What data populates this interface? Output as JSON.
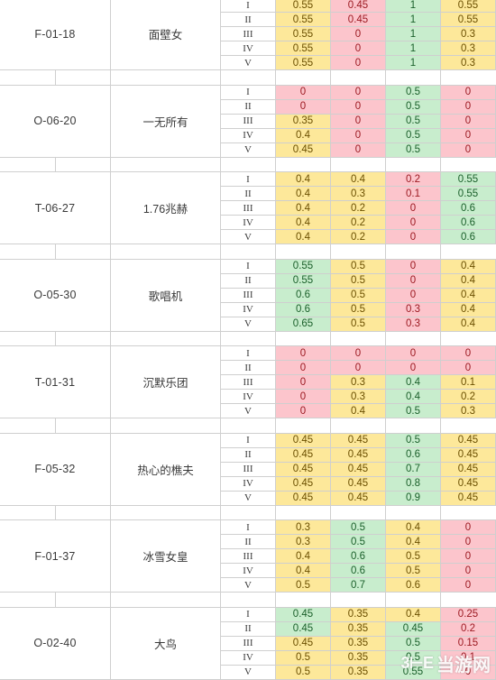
{
  "palette": {
    "yellow": "#fde89a",
    "red": "#fcc5cc",
    "green": "#c8edcd",
    "white": "#ffffff",
    "grid": "#cfcfcf",
    "text": "#3a3a3a",
    "text_red": "#9c1a22",
    "text_green": "#1a5f2a",
    "text_yellow": "#6b4f00"
  },
  "watermark": {
    "logo": "3⊢E",
    "text": "当游网"
  },
  "roman": [
    "I",
    "II",
    "III",
    "IV",
    "V"
  ],
  "groups": [
    {
      "code": "F-01-18",
      "name": "面壁女",
      "rows": [
        {
          "values": [
            "0.55",
            "0.45",
            "1",
            "0.55"
          ],
          "colors": [
            "y",
            "r",
            "g",
            "y"
          ]
        },
        {
          "values": [
            "0.55",
            "0.45",
            "1",
            "0.55"
          ],
          "colors": [
            "y",
            "r",
            "g",
            "y"
          ]
        },
        {
          "values": [
            "0.55",
            "0",
            "1",
            "0.3"
          ],
          "colors": [
            "y",
            "r",
            "g",
            "y"
          ]
        },
        {
          "values": [
            "0.55",
            "0",
            "1",
            "0.3"
          ],
          "colors": [
            "y",
            "r",
            "g",
            "y"
          ]
        },
        {
          "values": [
            "0.55",
            "0",
            "1",
            "0.3"
          ],
          "colors": [
            "y",
            "r",
            "g",
            "y"
          ]
        }
      ]
    },
    {
      "code": "O-06-20",
      "name": "一无所有",
      "rows": [
        {
          "values": [
            "0",
            "0",
            "0.5",
            "0"
          ],
          "colors": [
            "r",
            "r",
            "g",
            "r"
          ]
        },
        {
          "values": [
            "0",
            "0",
            "0.5",
            "0"
          ],
          "colors": [
            "r",
            "r",
            "g",
            "r"
          ]
        },
        {
          "values": [
            "0.35",
            "0",
            "0.5",
            "0"
          ],
          "colors": [
            "y",
            "r",
            "g",
            "r"
          ]
        },
        {
          "values": [
            "0.4",
            "0",
            "0.5",
            "0"
          ],
          "colors": [
            "y",
            "r",
            "g",
            "r"
          ]
        },
        {
          "values": [
            "0.45",
            "0",
            "0.5",
            "0"
          ],
          "colors": [
            "y",
            "r",
            "g",
            "r"
          ]
        }
      ]
    },
    {
      "code": "T-06-27",
      "name": "1.76兆赫",
      "rows": [
        {
          "values": [
            "0.4",
            "0.4",
            "0.2",
            "0.55"
          ],
          "colors": [
            "y",
            "y",
            "r",
            "g"
          ]
        },
        {
          "values": [
            "0.4",
            "0.3",
            "0.1",
            "0.55"
          ],
          "colors": [
            "y",
            "y",
            "r",
            "g"
          ]
        },
        {
          "values": [
            "0.4",
            "0.2",
            "0",
            "0.6"
          ],
          "colors": [
            "y",
            "y",
            "r",
            "g"
          ]
        },
        {
          "values": [
            "0.4",
            "0.2",
            "0",
            "0.6"
          ],
          "colors": [
            "y",
            "y",
            "r",
            "g"
          ]
        },
        {
          "values": [
            "0.4",
            "0.2",
            "0",
            "0.6"
          ],
          "colors": [
            "y",
            "y",
            "r",
            "g"
          ]
        }
      ]
    },
    {
      "code": "O-05-30",
      "name": "歌唱机",
      "rows": [
        {
          "values": [
            "0.55",
            "0.5",
            "0",
            "0.4"
          ],
          "colors": [
            "g",
            "y",
            "r",
            "y"
          ]
        },
        {
          "values": [
            "0.55",
            "0.5",
            "0",
            "0.4"
          ],
          "colors": [
            "g",
            "y",
            "r",
            "y"
          ]
        },
        {
          "values": [
            "0.6",
            "0.5",
            "0",
            "0.4"
          ],
          "colors": [
            "g",
            "y",
            "r",
            "y"
          ]
        },
        {
          "values": [
            "0.6",
            "0.5",
            "0.3",
            "0.4"
          ],
          "colors": [
            "g",
            "y",
            "r",
            "y"
          ]
        },
        {
          "values": [
            "0.65",
            "0.5",
            "0.3",
            "0.4"
          ],
          "colors": [
            "g",
            "y",
            "r",
            "y"
          ]
        }
      ]
    },
    {
      "code": "T-01-31",
      "name": "沉默乐团",
      "rows": [
        {
          "values": [
            "0",
            "0",
            "0",
            "0"
          ],
          "colors": [
            "r",
            "r",
            "r",
            "r"
          ]
        },
        {
          "values": [
            "0",
            "0",
            "0",
            "0"
          ],
          "colors": [
            "r",
            "r",
            "r",
            "r"
          ]
        },
        {
          "values": [
            "0",
            "0.3",
            "0.4",
            "0.1"
          ],
          "colors": [
            "r",
            "y",
            "g",
            "y"
          ]
        },
        {
          "values": [
            "0",
            "0.3",
            "0.4",
            "0.2"
          ],
          "colors": [
            "r",
            "y",
            "g",
            "y"
          ]
        },
        {
          "values": [
            "0",
            "0.4",
            "0.5",
            "0.3"
          ],
          "colors": [
            "r",
            "y",
            "g",
            "y"
          ]
        }
      ]
    },
    {
      "code": "F-05-32",
      "name": "热心的樵夫",
      "rows": [
        {
          "values": [
            "0.45",
            "0.45",
            "0.5",
            "0.45"
          ],
          "colors": [
            "y",
            "y",
            "g",
            "y"
          ]
        },
        {
          "values": [
            "0.45",
            "0.45",
            "0.6",
            "0.45"
          ],
          "colors": [
            "y",
            "y",
            "g",
            "y"
          ]
        },
        {
          "values": [
            "0.45",
            "0.45",
            "0.7",
            "0.45"
          ],
          "colors": [
            "y",
            "y",
            "g",
            "y"
          ]
        },
        {
          "values": [
            "0.45",
            "0.45",
            "0.8",
            "0.45"
          ],
          "colors": [
            "y",
            "y",
            "g",
            "y"
          ]
        },
        {
          "values": [
            "0.45",
            "0.45",
            "0.9",
            "0.45"
          ],
          "colors": [
            "y",
            "y",
            "g",
            "y"
          ]
        }
      ]
    },
    {
      "code": "F-01-37",
      "name": "冰雪女皇",
      "rows": [
        {
          "values": [
            "0.3",
            "0.5",
            "0.4",
            "0"
          ],
          "colors": [
            "y",
            "g",
            "y",
            "r"
          ]
        },
        {
          "values": [
            "0.3",
            "0.5",
            "0.4",
            "0"
          ],
          "colors": [
            "y",
            "g",
            "y",
            "r"
          ]
        },
        {
          "values": [
            "0.4",
            "0.6",
            "0.5",
            "0"
          ],
          "colors": [
            "y",
            "g",
            "y",
            "r"
          ]
        },
        {
          "values": [
            "0.4",
            "0.6",
            "0.5",
            "0"
          ],
          "colors": [
            "y",
            "g",
            "y",
            "r"
          ]
        },
        {
          "values": [
            "0.5",
            "0.7",
            "0.6",
            "0"
          ],
          "colors": [
            "y",
            "g",
            "y",
            "r"
          ]
        }
      ]
    },
    {
      "code": "O-02-40",
      "name": "大鸟",
      "rows": [
        {
          "values": [
            "0.45",
            "0.35",
            "0.4",
            "0.25"
          ],
          "colors": [
            "g",
            "y",
            "y",
            "r"
          ]
        },
        {
          "values": [
            "0.45",
            "0.35",
            "0.45",
            "0.2"
          ],
          "colors": [
            "g",
            "y",
            "g",
            "r"
          ]
        },
        {
          "values": [
            "0.45",
            "0.35",
            "0.5",
            "0.15"
          ],
          "colors": [
            "y",
            "y",
            "g",
            "r"
          ]
        },
        {
          "values": [
            "0.5",
            "0.35",
            "0.5",
            "0.1"
          ],
          "colors": [
            "y",
            "y",
            "g",
            "r"
          ]
        },
        {
          "values": [
            "0.5",
            "0.35",
            "0.55",
            "0"
          ],
          "colors": [
            "y",
            "y",
            "g",
            "r"
          ]
        }
      ]
    }
  ]
}
